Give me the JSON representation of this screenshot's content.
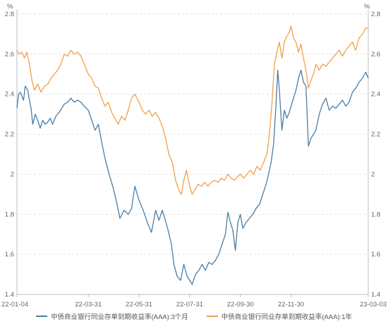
{
  "chart_data": {
    "type": "line",
    "y_unit_left": "%",
    "y_unit_right": "%",
    "ylim": [
      1.4,
      2.8
    ],
    "y_ticks": [
      1.4,
      1.6,
      1.8,
      2,
      2.2,
      2.4,
      2.6,
      2.8
    ],
    "x_tick_labels": [
      "22-01-04",
      "22-03-31",
      "22-05-31",
      "22-07-31",
      "22-09-30",
      "22-11-30",
      "23-03-03"
    ],
    "x_tick_dates": [
      "2022-01-04",
      "2022-03-31",
      "2022-05-31",
      "2022-07-31",
      "2022-09-30",
      "2022-11-30",
      "2023-03-03"
    ],
    "grid": "horizontal",
    "legend_position": "bottom",
    "series": [
      {
        "name": "中债商业银行同业存单到期收益率(AAA):3个月",
        "color": "#4a7ea5",
        "points": [
          [
            "2022-01-04",
            2.33
          ],
          [
            "2022-01-06",
            2.4
          ],
          [
            "2022-01-08",
            2.41
          ],
          [
            "2022-01-12",
            2.37
          ],
          [
            "2022-01-14",
            2.44
          ],
          [
            "2022-01-17",
            2.42
          ],
          [
            "2022-01-19",
            2.37
          ],
          [
            "2022-01-21",
            2.33
          ],
          [
            "2022-01-23",
            2.25
          ],
          [
            "2022-01-26",
            2.3
          ],
          [
            "2022-01-29",
            2.27
          ],
          [
            "2022-02-01",
            2.23
          ],
          [
            "2022-02-04",
            2.27
          ],
          [
            "2022-02-07",
            2.25
          ],
          [
            "2022-02-10",
            2.26
          ],
          [
            "2022-02-13",
            2.28
          ],
          [
            "2022-02-16",
            2.25
          ],
          [
            "2022-02-20",
            2.29
          ],
          [
            "2022-02-24",
            2.31
          ],
          [
            "2022-02-27",
            2.33
          ],
          [
            "2022-03-02",
            2.35
          ],
          [
            "2022-03-06",
            2.36
          ],
          [
            "2022-03-10",
            2.38
          ],
          [
            "2022-03-14",
            2.36
          ],
          [
            "2022-03-18",
            2.37
          ],
          [
            "2022-03-22",
            2.36
          ],
          [
            "2022-03-26",
            2.34
          ],
          [
            "2022-03-31",
            2.32
          ],
          [
            "2022-04-04",
            2.27
          ],
          [
            "2022-04-08",
            2.22
          ],
          [
            "2022-04-12",
            2.25
          ],
          [
            "2022-04-16",
            2.16
          ],
          [
            "2022-04-20",
            2.08
          ],
          [
            "2022-04-25",
            2.0
          ],
          [
            "2022-04-30",
            1.93
          ],
          [
            "2022-05-04",
            1.86
          ],
          [
            "2022-05-08",
            1.78
          ],
          [
            "2022-05-13",
            1.82
          ],
          [
            "2022-05-18",
            1.8
          ],
          [
            "2022-05-22",
            1.83
          ],
          [
            "2022-05-26",
            1.94
          ],
          [
            "2022-05-31",
            1.87
          ],
          [
            "2022-06-05",
            1.82
          ],
          [
            "2022-06-10",
            1.76
          ],
          [
            "2022-06-15",
            1.71
          ],
          [
            "2022-06-20",
            1.82
          ],
          [
            "2022-06-24",
            1.77
          ],
          [
            "2022-06-28",
            1.82
          ],
          [
            "2022-07-01",
            1.78
          ],
          [
            "2022-07-05",
            1.72
          ],
          [
            "2022-07-09",
            1.65
          ],
          [
            "2022-07-12",
            1.55
          ],
          [
            "2022-07-16",
            1.49
          ],
          [
            "2022-07-20",
            1.47
          ],
          [
            "2022-07-24",
            1.55
          ],
          [
            "2022-07-28",
            1.49
          ],
          [
            "2022-07-31",
            1.47
          ],
          [
            "2022-08-03",
            1.45
          ],
          [
            "2022-08-07",
            1.5
          ],
          [
            "2022-08-11",
            1.52
          ],
          [
            "2022-08-15",
            1.55
          ],
          [
            "2022-08-19",
            1.52
          ],
          [
            "2022-08-23",
            1.56
          ],
          [
            "2022-08-27",
            1.55
          ],
          [
            "2022-08-31",
            1.57
          ],
          [
            "2022-09-04",
            1.6
          ],
          [
            "2022-09-08",
            1.65
          ],
          [
            "2022-09-12",
            1.7
          ],
          [
            "2022-09-15",
            1.81
          ],
          [
            "2022-09-18",
            1.76
          ],
          [
            "2022-09-21",
            1.72
          ],
          [
            "2022-09-24",
            1.62
          ],
          [
            "2022-09-27",
            1.76
          ],
          [
            "2022-09-30",
            1.8
          ],
          [
            "2022-10-03",
            1.73
          ],
          [
            "2022-10-07",
            1.76
          ],
          [
            "2022-10-11",
            1.78
          ],
          [
            "2022-10-15",
            1.8
          ],
          [
            "2022-10-19",
            1.83
          ],
          [
            "2022-10-23",
            1.85
          ],
          [
            "2022-10-27",
            1.9
          ],
          [
            "2022-10-31",
            1.95
          ],
          [
            "2022-11-03",
            2.0
          ],
          [
            "2022-11-06",
            2.06
          ],
          [
            "2022-11-09",
            2.15
          ],
          [
            "2022-11-12",
            2.35
          ],
          [
            "2022-11-14",
            2.52
          ],
          [
            "2022-11-16",
            2.42
          ],
          [
            "2022-11-19",
            2.22
          ],
          [
            "2022-11-22",
            2.32
          ],
          [
            "2022-11-25",
            2.28
          ],
          [
            "2022-11-28",
            2.31
          ],
          [
            "2022-11-30",
            2.34
          ],
          [
            "2022-12-03",
            2.38
          ],
          [
            "2022-12-06",
            2.42
          ],
          [
            "2022-12-09",
            2.48
          ],
          [
            "2022-12-12",
            2.52
          ],
          [
            "2022-12-15",
            2.46
          ],
          [
            "2022-12-18",
            2.44
          ],
          [
            "2022-12-21",
            2.14
          ],
          [
            "2022-12-24",
            2.18
          ],
          [
            "2022-12-27",
            2.2
          ],
          [
            "2022-12-30",
            2.22
          ],
          [
            "2023-01-03",
            2.3
          ],
          [
            "2023-01-07",
            2.35
          ],
          [
            "2023-01-11",
            2.38
          ],
          [
            "2023-01-15",
            2.32
          ],
          [
            "2023-01-19",
            2.34
          ],
          [
            "2023-01-23",
            2.33
          ],
          [
            "2023-01-27",
            2.35
          ],
          [
            "2023-01-31",
            2.37
          ],
          [
            "2023-02-04",
            2.34
          ],
          [
            "2023-02-08",
            2.36
          ],
          [
            "2023-02-12",
            2.41
          ],
          [
            "2023-02-16",
            2.43
          ],
          [
            "2023-02-20",
            2.46
          ],
          [
            "2023-02-24",
            2.48
          ],
          [
            "2023-02-28",
            2.51
          ],
          [
            "2023-03-03",
            2.48
          ]
        ]
      },
      {
        "name": "中债商业银行同业存单到期收益率(AAA):1年",
        "color": "#f0a04b",
        "points": [
          [
            "2022-01-04",
            2.62
          ],
          [
            "2022-01-07",
            2.6
          ],
          [
            "2022-01-10",
            2.61
          ],
          [
            "2022-01-13",
            2.58
          ],
          [
            "2022-01-16",
            2.61
          ],
          [
            "2022-01-19",
            2.55
          ],
          [
            "2022-01-22",
            2.47
          ],
          [
            "2022-01-25",
            2.42
          ],
          [
            "2022-01-29",
            2.45
          ],
          [
            "2022-02-02",
            2.41
          ],
          [
            "2022-02-06",
            2.44
          ],
          [
            "2022-02-10",
            2.45
          ],
          [
            "2022-02-14",
            2.48
          ],
          [
            "2022-02-18",
            2.5
          ],
          [
            "2022-02-22",
            2.52
          ],
          [
            "2022-02-26",
            2.55
          ],
          [
            "2022-03-02",
            2.6
          ],
          [
            "2022-03-06",
            2.59
          ],
          [
            "2022-03-10",
            2.62
          ],
          [
            "2022-03-14",
            2.6
          ],
          [
            "2022-03-18",
            2.61
          ],
          [
            "2022-03-22",
            2.59
          ],
          [
            "2022-03-26",
            2.55
          ],
          [
            "2022-03-31",
            2.5
          ],
          [
            "2022-04-04",
            2.48
          ],
          [
            "2022-04-08",
            2.44
          ],
          [
            "2022-04-12",
            2.43
          ],
          [
            "2022-04-16",
            2.38
          ],
          [
            "2022-04-20",
            2.34
          ],
          [
            "2022-04-24",
            2.36
          ],
          [
            "2022-04-28",
            2.31
          ],
          [
            "2022-05-02",
            2.28
          ],
          [
            "2022-05-06",
            2.25
          ],
          [
            "2022-05-10",
            2.29
          ],
          [
            "2022-05-14",
            2.27
          ],
          [
            "2022-05-18",
            2.32
          ],
          [
            "2022-05-22",
            2.38
          ],
          [
            "2022-05-26",
            2.4
          ],
          [
            "2022-05-31",
            2.36
          ],
          [
            "2022-06-04",
            2.32
          ],
          [
            "2022-06-08",
            2.3
          ],
          [
            "2022-06-12",
            2.32
          ],
          [
            "2022-06-16",
            2.29
          ],
          [
            "2022-06-20",
            2.31
          ],
          [
            "2022-06-24",
            2.28
          ],
          [
            "2022-06-28",
            2.24
          ],
          [
            "2022-07-02",
            2.18
          ],
          [
            "2022-07-06",
            2.1
          ],
          [
            "2022-07-10",
            2.06
          ],
          [
            "2022-07-14",
            1.97
          ],
          [
            "2022-07-18",
            1.92
          ],
          [
            "2022-07-21",
            1.9
          ],
          [
            "2022-07-24",
            1.97
          ],
          [
            "2022-07-27",
            2.02
          ],
          [
            "2022-07-31",
            1.94
          ],
          [
            "2022-08-03",
            1.9
          ],
          [
            "2022-08-06",
            1.92
          ],
          [
            "2022-08-10",
            1.95
          ],
          [
            "2022-08-14",
            1.94
          ],
          [
            "2022-08-18",
            1.96
          ],
          [
            "2022-08-22",
            1.94
          ],
          [
            "2022-08-26",
            1.96
          ],
          [
            "2022-08-30",
            1.97
          ],
          [
            "2022-09-03",
            1.96
          ],
          [
            "2022-09-07",
            1.98
          ],
          [
            "2022-09-11",
            1.97
          ],
          [
            "2022-09-15",
            2.0
          ],
          [
            "2022-09-19",
            1.98
          ],
          [
            "2022-09-23",
            1.97
          ],
          [
            "2022-09-27",
            1.99
          ],
          [
            "2022-09-30",
            2.0
          ],
          [
            "2022-10-04",
            1.98
          ],
          [
            "2022-10-08",
            2.0
          ],
          [
            "2022-10-12",
            2.02
          ],
          [
            "2022-10-16",
            2.0
          ],
          [
            "2022-10-20",
            2.04
          ],
          [
            "2022-10-24",
            2.02
          ],
          [
            "2022-10-28",
            2.06
          ],
          [
            "2022-11-01",
            2.1
          ],
          [
            "2022-11-04",
            2.2
          ],
          [
            "2022-11-07",
            2.35
          ],
          [
            "2022-11-10",
            2.55
          ],
          [
            "2022-11-13",
            2.61
          ],
          [
            "2022-11-16",
            2.66
          ],
          [
            "2022-11-19",
            2.58
          ],
          [
            "2022-11-22",
            2.66
          ],
          [
            "2022-11-25",
            2.69
          ],
          [
            "2022-11-28",
            2.71
          ],
          [
            "2022-11-30",
            2.74
          ],
          [
            "2022-12-03",
            2.68
          ],
          [
            "2022-12-06",
            2.66
          ],
          [
            "2022-12-09",
            2.61
          ],
          [
            "2022-12-12",
            2.65
          ],
          [
            "2022-12-15",
            2.58
          ],
          [
            "2022-12-18",
            2.52
          ],
          [
            "2022-12-21",
            2.43
          ],
          [
            "2022-12-24",
            2.47
          ],
          [
            "2022-12-27",
            2.5
          ],
          [
            "2022-12-30",
            2.55
          ],
          [
            "2023-01-03",
            2.52
          ],
          [
            "2023-01-07",
            2.55
          ],
          [
            "2023-01-11",
            2.54
          ],
          [
            "2023-01-15",
            2.56
          ],
          [
            "2023-01-19",
            2.58
          ],
          [
            "2023-01-23",
            2.6
          ],
          [
            "2023-01-27",
            2.62
          ],
          [
            "2023-01-31",
            2.59
          ],
          [
            "2023-02-04",
            2.62
          ],
          [
            "2023-02-08",
            2.64
          ],
          [
            "2023-02-12",
            2.66
          ],
          [
            "2023-02-16",
            2.62
          ],
          [
            "2023-02-20",
            2.68
          ],
          [
            "2023-02-24",
            2.7
          ],
          [
            "2023-02-28",
            2.73
          ],
          [
            "2023-03-03",
            2.73
          ]
        ]
      }
    ]
  }
}
